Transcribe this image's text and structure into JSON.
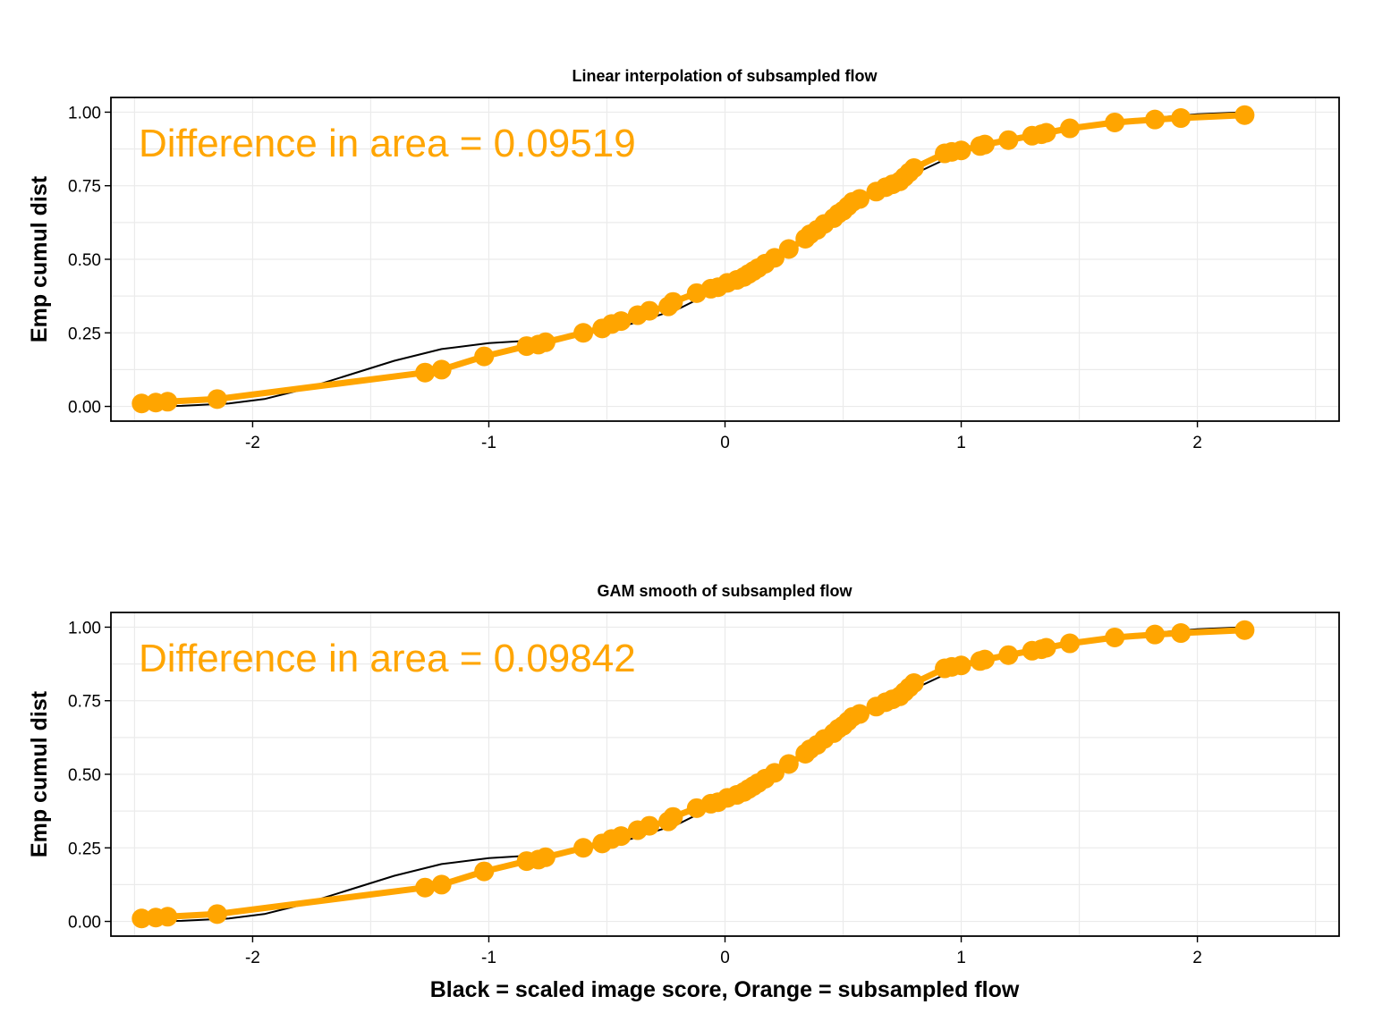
{
  "colors": {
    "reference": "#000000",
    "subsampled": "#FFA500",
    "grid": "#ebebeb"
  },
  "chart_data": [
    {
      "type": "line",
      "title": "Linear interpolation of subsampled flow",
      "ylabel": "Emp cumul dist",
      "xlabel": "",
      "annotation": "Difference in area = 0.09519",
      "xlim": [
        -2.6,
        2.6
      ],
      "ylim": [
        -0.05,
        1.05
      ],
      "x_ticks": [
        -2,
        -1,
        0,
        1,
        2
      ],
      "x_tick_labels": [
        "-2",
        "-1",
        "0",
        "1",
        "2"
      ],
      "y_ticks": [
        0,
        0.25,
        0.5,
        0.75,
        1
      ],
      "y_tick_labels": [
        "0.00",
        "0.25",
        "0.50",
        "0.75",
        "1.00"
      ],
      "grid": true,
      "series": [
        {
          "style": "line",
          "color": "#000000",
          "x": [
            -2.46,
            -2.3,
            -2.1,
            -1.95,
            -1.8,
            -1.6,
            -1.4,
            -1.2,
            -1.0,
            -0.8,
            -0.6,
            -0.4,
            -0.2,
            0.0,
            0.2,
            0.4,
            0.6,
            0.8,
            1.0,
            1.2,
            1.4,
            1.6,
            1.8,
            2.0,
            2.2
          ],
          "y": [
            0.0,
            0.002,
            0.01,
            0.025,
            0.055,
            0.105,
            0.155,
            0.195,
            0.215,
            0.225,
            0.245,
            0.28,
            0.33,
            0.41,
            0.505,
            0.6,
            0.705,
            0.79,
            0.865,
            0.905,
            0.935,
            0.96,
            0.98,
            0.993,
            1.0
          ]
        },
        {
          "style": "line+points",
          "color": "#FFA500",
          "x": [
            -2.47,
            -2.41,
            -2.36,
            -2.15,
            -1.27,
            -1.2,
            -1.02,
            -0.84,
            -0.79,
            -0.76,
            -0.6,
            -0.52,
            -0.48,
            -0.44,
            -0.37,
            -0.32,
            -0.24,
            -0.22,
            -0.12,
            -0.06,
            -0.03,
            0.01,
            0.05,
            0.08,
            0.1,
            0.12,
            0.14,
            0.17,
            0.21,
            0.27,
            0.34,
            0.36,
            0.39,
            0.42,
            0.46,
            0.48,
            0.5,
            0.52,
            0.54,
            0.57,
            0.64,
            0.68,
            0.71,
            0.74,
            0.76,
            0.78,
            0.8,
            0.93,
            0.96,
            1.0,
            1.08,
            1.1,
            1.2,
            1.3,
            1.34,
            1.36,
            1.46,
            1.65,
            1.82,
            1.93,
            2.2
          ],
          "y": [
            0.01,
            0.013,
            0.016,
            0.025,
            0.115,
            0.125,
            0.17,
            0.205,
            0.21,
            0.218,
            0.25,
            0.265,
            0.28,
            0.29,
            0.31,
            0.325,
            0.34,
            0.355,
            0.385,
            0.4,
            0.405,
            0.42,
            0.43,
            0.44,
            0.45,
            0.46,
            0.47,
            0.485,
            0.505,
            0.535,
            0.57,
            0.585,
            0.6,
            0.62,
            0.64,
            0.655,
            0.665,
            0.68,
            0.695,
            0.705,
            0.73,
            0.745,
            0.755,
            0.765,
            0.78,
            0.795,
            0.81,
            0.86,
            0.865,
            0.87,
            0.885,
            0.89,
            0.905,
            0.92,
            0.925,
            0.93,
            0.945,
            0.965,
            0.975,
            0.98,
            0.99
          ]
        }
      ]
    },
    {
      "type": "line",
      "title": "GAM smooth of subsampled flow",
      "ylabel": "Emp cumul dist",
      "xlabel": "Black = scaled image score, Orange = subsampled flow",
      "annotation": "Difference in area = 0.09842",
      "xlim": [
        -2.6,
        2.6
      ],
      "ylim": [
        -0.05,
        1.05
      ],
      "x_ticks": [
        -2,
        -1,
        0,
        1,
        2
      ],
      "x_tick_labels": [
        "-2",
        "-1",
        "0",
        "1",
        "2"
      ],
      "y_ticks": [
        0,
        0.25,
        0.5,
        0.75,
        1
      ],
      "y_tick_labels": [
        "0.00",
        "0.25",
        "0.50",
        "0.75",
        "1.00"
      ],
      "grid": true,
      "series": [
        {
          "style": "line",
          "color": "#000000",
          "x": [
            -2.46,
            -2.3,
            -2.1,
            -1.95,
            -1.8,
            -1.6,
            -1.4,
            -1.2,
            -1.0,
            -0.8,
            -0.6,
            -0.4,
            -0.2,
            0.0,
            0.2,
            0.4,
            0.6,
            0.8,
            1.0,
            1.2,
            1.4,
            1.6,
            1.8,
            2.0,
            2.2
          ],
          "y": [
            0.0,
            0.002,
            0.01,
            0.025,
            0.055,
            0.105,
            0.155,
            0.195,
            0.215,
            0.225,
            0.245,
            0.28,
            0.33,
            0.41,
            0.505,
            0.6,
            0.705,
            0.79,
            0.865,
            0.905,
            0.935,
            0.96,
            0.98,
            0.993,
            1.0
          ]
        },
        {
          "style": "line+points",
          "color": "#FFA500",
          "x": [
            -2.47,
            -2.41,
            -2.36,
            -2.15,
            -1.27,
            -1.2,
            -1.02,
            -0.84,
            -0.79,
            -0.76,
            -0.6,
            -0.52,
            -0.48,
            -0.44,
            -0.37,
            -0.32,
            -0.24,
            -0.22,
            -0.12,
            -0.06,
            -0.03,
            0.01,
            0.05,
            0.08,
            0.1,
            0.12,
            0.14,
            0.17,
            0.21,
            0.27,
            0.34,
            0.36,
            0.39,
            0.42,
            0.46,
            0.48,
            0.5,
            0.52,
            0.54,
            0.57,
            0.64,
            0.68,
            0.71,
            0.74,
            0.76,
            0.78,
            0.8,
            0.93,
            0.96,
            1.0,
            1.08,
            1.1,
            1.2,
            1.3,
            1.34,
            1.36,
            1.46,
            1.65,
            1.82,
            1.93,
            2.2
          ],
          "y": [
            0.01,
            0.013,
            0.016,
            0.025,
            0.115,
            0.125,
            0.17,
            0.205,
            0.21,
            0.218,
            0.25,
            0.265,
            0.28,
            0.29,
            0.31,
            0.325,
            0.34,
            0.355,
            0.385,
            0.4,
            0.405,
            0.42,
            0.43,
            0.44,
            0.45,
            0.46,
            0.47,
            0.485,
            0.505,
            0.535,
            0.57,
            0.585,
            0.6,
            0.62,
            0.64,
            0.655,
            0.665,
            0.68,
            0.695,
            0.705,
            0.73,
            0.745,
            0.755,
            0.765,
            0.78,
            0.795,
            0.81,
            0.86,
            0.865,
            0.87,
            0.885,
            0.89,
            0.905,
            0.92,
            0.925,
            0.93,
            0.945,
            0.965,
            0.975,
            0.98,
            0.99
          ]
        }
      ]
    }
  ]
}
